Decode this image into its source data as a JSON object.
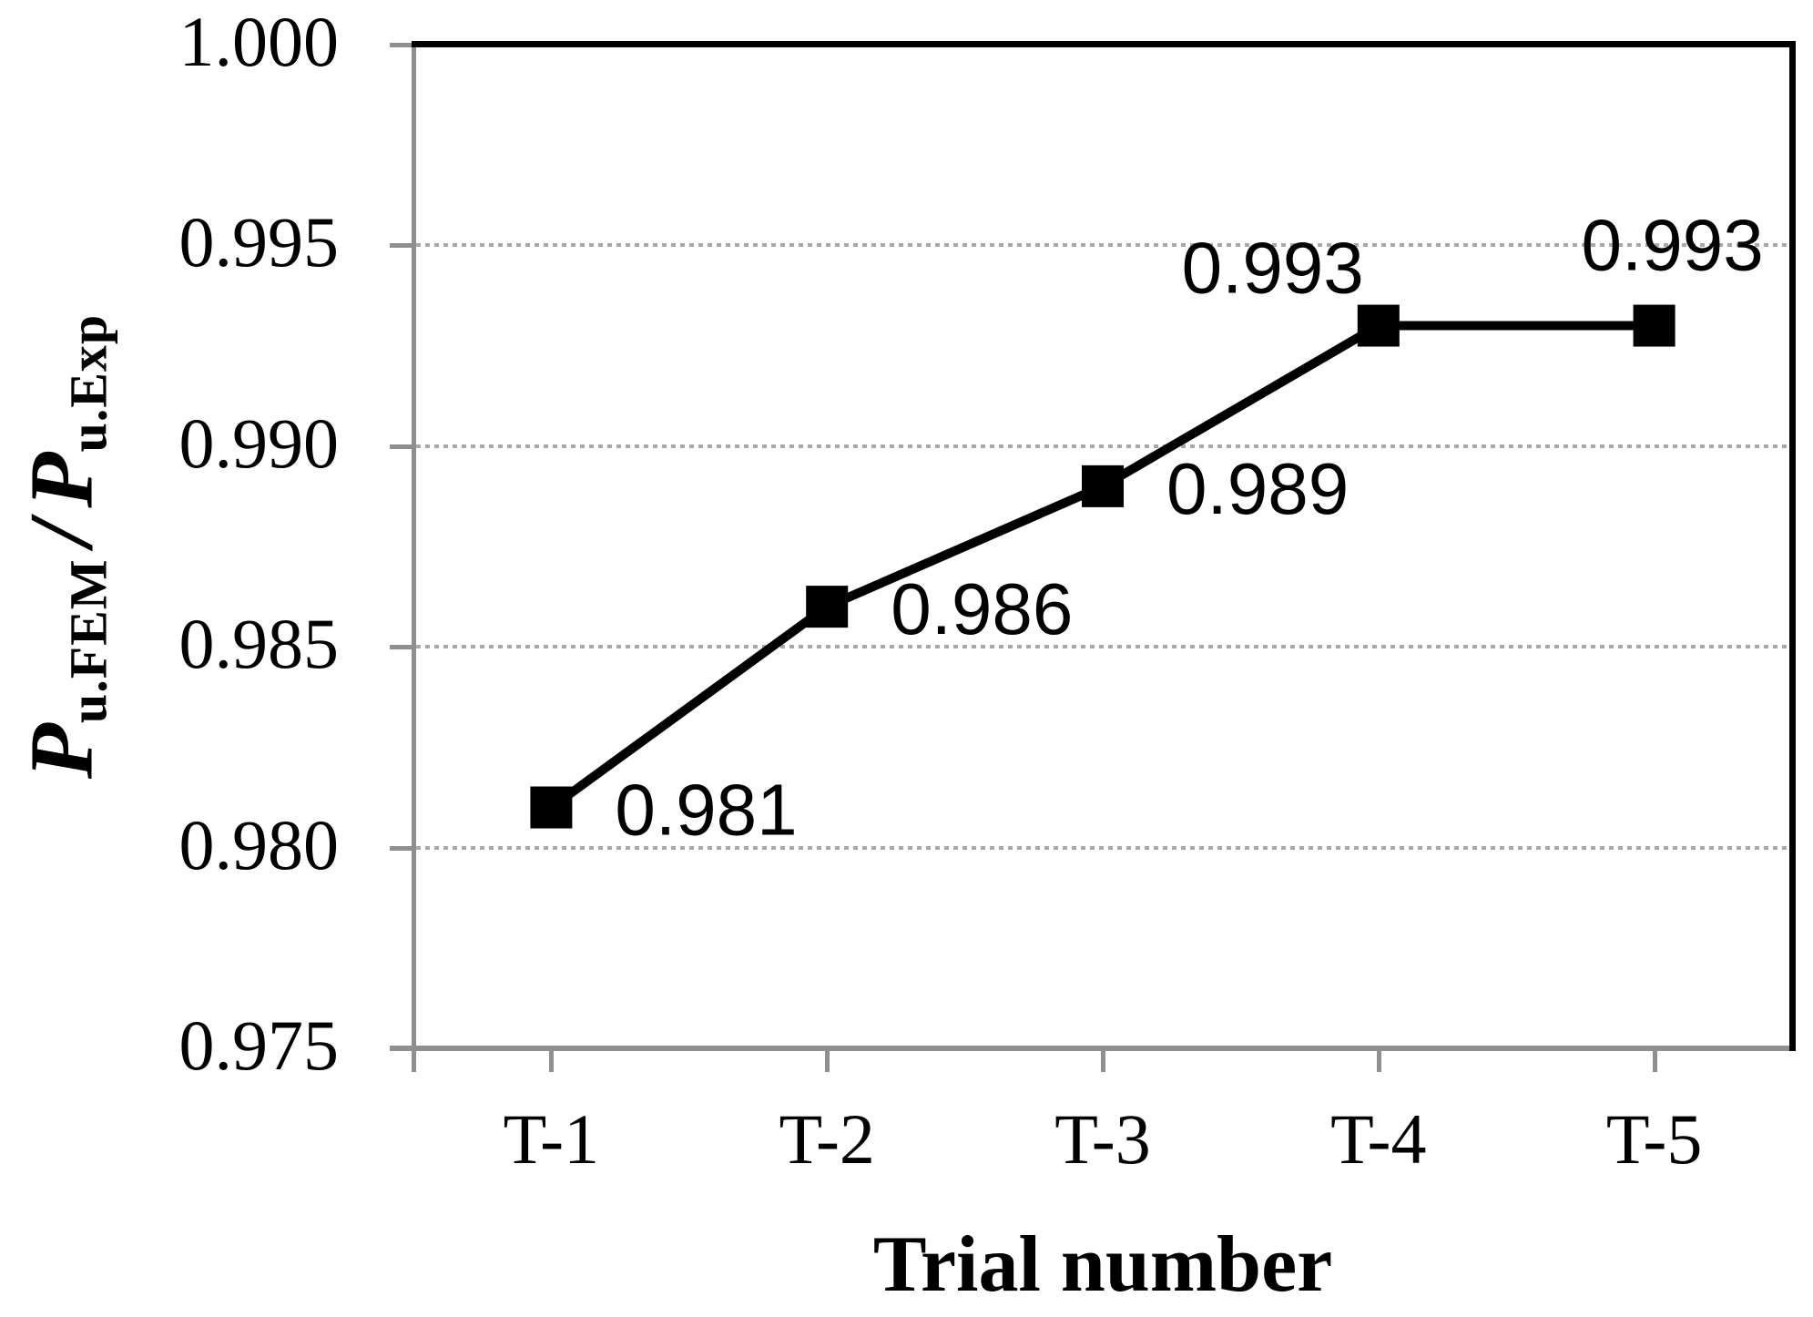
{
  "chart_data": {
    "type": "line",
    "categories": [
      "T-1",
      "T-2",
      "T-3",
      "T-4",
      "T-5"
    ],
    "series": [
      {
        "name": "Pu.FEM / Pu.Exp",
        "values": [
          0.981,
          0.986,
          0.989,
          0.993,
          0.993
        ],
        "color": "#000000",
        "marker": "square"
      }
    ],
    "data_labels": [
      {
        "text": "0.981",
        "position": "right"
      },
      {
        "text": "0.986",
        "position": "right"
      },
      {
        "text": "0.989",
        "position": "right"
      },
      {
        "text": "0.993",
        "position": "above-left"
      },
      {
        "text": "0.993",
        "position": "above"
      }
    ],
    "xlabel": "Trial number",
    "ylabel": "Pu.FEM / Pu.Exp",
    "ylabel_parts": {
      "p1": "P",
      "sub1": "u.FEM",
      "slash": "/",
      "p2": "P",
      "sub2": "u.Exp"
    },
    "ylim": [
      0.975,
      1.0
    ],
    "y_ticks": [
      {
        "label": "1.000",
        "value": 1.0
      },
      {
        "label": "0.995",
        "value": 0.995
      },
      {
        "label": "0.990",
        "value": 0.99
      },
      {
        "label": "0.985",
        "value": 0.985
      },
      {
        "label": "0.980",
        "value": 0.98
      },
      {
        "label": "0.975",
        "value": 0.975
      }
    ],
    "grid": "horizontal-dotted",
    "legend": "none"
  },
  "colors": {
    "axis": "#8f8f8f",
    "gridline": "#a8a8a8",
    "series": "#000000",
    "border": "#000000",
    "background": "#ffffff",
    "text": "#000000"
  }
}
